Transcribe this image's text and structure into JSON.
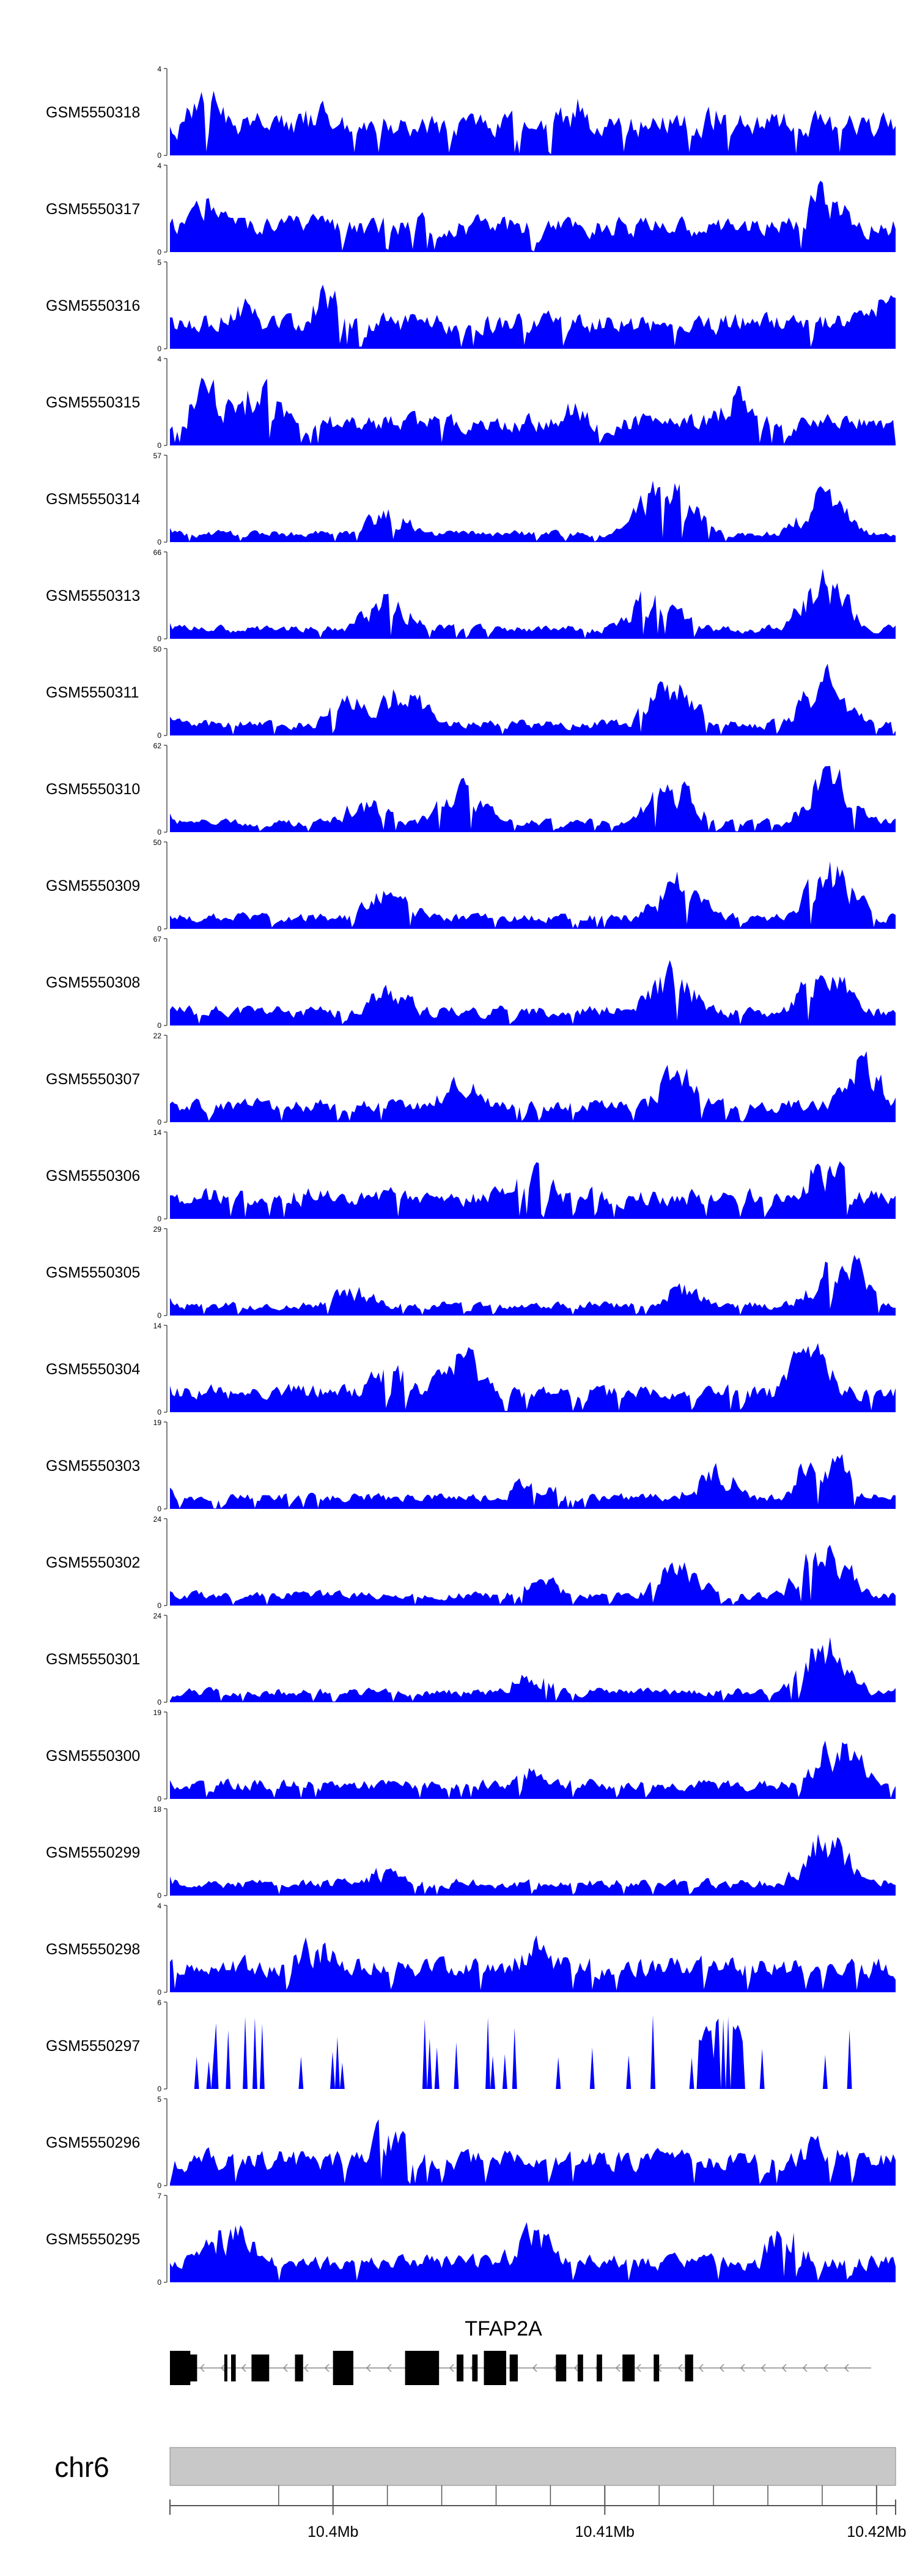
{
  "chart_data": {
    "type": "area",
    "colors": {
      "signal": "#0000FF",
      "gene": "#000000",
      "chromosome": "#C8C8C8",
      "axis": "#555555"
    },
    "xlim": [
      10394000,
      10420700
    ],
    "tracks": [
      {
        "name": "GSM5550318",
        "ymax": 4,
        "ymin": 0,
        "seed": 318,
        "base": 0.55,
        "bumps": [
          [
            0.05,
            0.9
          ],
          [
            0.2,
            0.7
          ],
          [
            0.55,
            0.85
          ],
          [
            0.75,
            0.7
          ]
        ]
      },
      {
        "name": "GSM5550317",
        "ymax": 4,
        "ymin": 0,
        "seed": 317,
        "base": 0.45,
        "bumps": [
          [
            0.05,
            0.8
          ],
          [
            0.35,
            0.6
          ],
          [
            0.9,
            0.9
          ]
        ]
      },
      {
        "name": "GSM5550316",
        "ymax": 5,
        "ymin": 0,
        "seed": 316,
        "base": 0.45,
        "bumps": [
          [
            0.1,
            0.7
          ],
          [
            0.22,
            0.9
          ],
          [
            0.5,
            0.55
          ],
          [
            0.98,
            0.7
          ]
        ]
      },
      {
        "name": "GSM5550315",
        "ymax": 4,
        "ymin": 0,
        "seed": 315,
        "base": 0.4,
        "bumps": [
          [
            0.05,
            0.85
          ],
          [
            0.12,
            0.9
          ],
          [
            0.55,
            0.6
          ],
          [
            0.78,
            0.75
          ]
        ]
      },
      {
        "name": "GSM5550314",
        "ymax": 57,
        "ymin": 0,
        "seed": 314,
        "base": 0.15,
        "bumps": [
          [
            0.3,
            0.45
          ],
          [
            0.7,
            0.7
          ],
          [
            0.68,
            0.95
          ],
          [
            0.9,
            0.75
          ]
        ]
      },
      {
        "name": "GSM5550313",
        "ymax": 66,
        "ymin": 0,
        "seed": 313,
        "base": 0.18,
        "bumps": [
          [
            0.3,
            0.65
          ],
          [
            0.67,
            0.8
          ],
          [
            0.9,
            0.9
          ]
        ]
      },
      {
        "name": "GSM5550311",
        "ymax": 50,
        "ymin": 0,
        "seed": 311,
        "base": 0.2,
        "bumps": [
          [
            0.25,
            0.55
          ],
          [
            0.32,
            0.7
          ],
          [
            0.69,
            0.85
          ],
          [
            0.9,
            0.85
          ]
        ]
      },
      {
        "name": "GSM5550310",
        "ymax": 62,
        "ymin": 0,
        "seed": 310,
        "base": 0.17,
        "bumps": [
          [
            0.27,
            0.5
          ],
          [
            0.4,
            0.65
          ],
          [
            0.69,
            0.75
          ],
          [
            0.91,
            0.9
          ]
        ]
      },
      {
        "name": "GSM5550309",
        "ymax": 50,
        "ymin": 0,
        "seed": 309,
        "base": 0.2,
        "bumps": [
          [
            0.3,
            0.6
          ],
          [
            0.7,
            0.75
          ],
          [
            0.91,
            0.9
          ]
        ]
      },
      {
        "name": "GSM5550308",
        "ymax": 67,
        "ymin": 0,
        "seed": 308,
        "base": 0.25,
        "bumps": [
          [
            0.3,
            0.55
          ],
          [
            0.69,
            0.8
          ],
          [
            0.9,
            0.85
          ]
        ]
      },
      {
        "name": "GSM5550307",
        "ymax": 22,
        "ymin": 0,
        "seed": 307,
        "base": 0.3,
        "bumps": [
          [
            0.4,
            0.65
          ],
          [
            0.7,
            0.75
          ],
          [
            0.95,
            0.9
          ]
        ]
      },
      {
        "name": "GSM5550306",
        "ymax": 14,
        "ymin": 0,
        "seed": 306,
        "base": 0.4,
        "bumps": [
          [
            0.5,
            0.7
          ],
          [
            0.9,
            0.85
          ]
        ]
      },
      {
        "name": "GSM5550305",
        "ymax": 29,
        "ymin": 0,
        "seed": 305,
        "base": 0.18,
        "bumps": [
          [
            0.25,
            0.4
          ],
          [
            0.7,
            0.45
          ],
          [
            0.92,
            0.95
          ]
        ]
      },
      {
        "name": "GSM5550304",
        "ymax": 14,
        "ymin": 0,
        "seed": 304,
        "base": 0.35,
        "bumps": [
          [
            0.3,
            0.7
          ],
          [
            0.4,
            0.85
          ],
          [
            0.88,
            0.95
          ]
        ]
      },
      {
        "name": "GSM5550303",
        "ymax": 19,
        "ymin": 0,
        "seed": 303,
        "base": 0.2,
        "bumps": [
          [
            0.5,
            0.45
          ],
          [
            0.75,
            0.6
          ],
          [
            0.9,
            0.95
          ]
        ]
      },
      {
        "name": "GSM5550302",
        "ymax": 24,
        "ymin": 0,
        "seed": 302,
        "base": 0.18,
        "bumps": [
          [
            0.5,
            0.45
          ],
          [
            0.7,
            0.65
          ],
          [
            0.9,
            0.95
          ]
        ]
      },
      {
        "name": "GSM5550301",
        "ymax": 24,
        "ymin": 0,
        "seed": 301,
        "base": 0.18,
        "bumps": [
          [
            0.5,
            0.45
          ],
          [
            0.9,
            0.95
          ]
        ]
      },
      {
        "name": "GSM5550300",
        "ymax": 19,
        "ymin": 0,
        "seed": 300,
        "base": 0.25,
        "bumps": [
          [
            0.5,
            0.45
          ],
          [
            0.92,
            0.9
          ]
        ]
      },
      {
        "name": "GSM5550299",
        "ymax": 18,
        "ymin": 0,
        "seed": 299,
        "base": 0.22,
        "bumps": [
          [
            0.3,
            0.4
          ],
          [
            0.9,
            0.95
          ]
        ]
      },
      {
        "name": "GSM5550298",
        "ymax": 4,
        "ymin": 0,
        "seed": 298,
        "base": 0.45,
        "bumps": [
          [
            0.2,
            0.8
          ],
          [
            0.5,
            0.7
          ]
        ]
      },
      {
        "name": "GSM5550297",
        "ymax": 6,
        "ymin": 0,
        "seed": 297,
        "base": 0.35,
        "sparse": true,
        "bumps": [
          [
            0.76,
            0.95
          ]
        ]
      },
      {
        "name": "GSM5550296",
        "ymax": 5,
        "ymin": 0,
        "seed": 296,
        "base": 0.45,
        "bumps": [
          [
            0.3,
            0.9
          ],
          [
            0.9,
            0.75
          ]
        ]
      },
      {
        "name": "GSM5550295",
        "ymax": 7,
        "ymin": 0,
        "seed": 295,
        "base": 0.35,
        "bumps": [
          [
            0.08,
            0.9
          ],
          [
            0.5,
            0.8
          ],
          [
            0.85,
            0.8
          ]
        ]
      }
    ],
    "gene": {
      "name": "TFAP2A",
      "strand": "-",
      "start": 10394000,
      "end": 10419800,
      "exons": [
        [
          10394000,
          10394750
        ],
        [
          10394700,
          10395000
        ],
        [
          10396000,
          10396100
        ],
        [
          10396250,
          10396420
        ],
        [
          10397000,
          10397650
        ],
        [
          10398600,
          10398900
        ],
        [
          10400000,
          10400750
        ],
        [
          10402650,
          10403900
        ],
        [
          10404550,
          10404800
        ],
        [
          10405120,
          10405320
        ],
        [
          10405550,
          10406370
        ],
        [
          10406500,
          10406800
        ],
        [
          10408200,
          10408580
        ],
        [
          10409000,
          10409200
        ],
        [
          10409700,
          10409900
        ],
        [
          10410650,
          10411100
        ],
        [
          10411800,
          10412000
        ],
        [
          10412950,
          10413250
        ]
      ]
    },
    "chromosome": "chr6",
    "axis": {
      "range": [
        10394000,
        10420700
      ],
      "major_ticks": [
        10400000,
        10410000,
        10420000
      ],
      "major_labels": [
        "10.4Mb",
        "10.41Mb",
        "10.42Mb"
      ],
      "minor_ticks": [
        10398000,
        10402000,
        10404000,
        10406000,
        10408000,
        10412000,
        10414000,
        10416000,
        10418000
      ]
    }
  }
}
